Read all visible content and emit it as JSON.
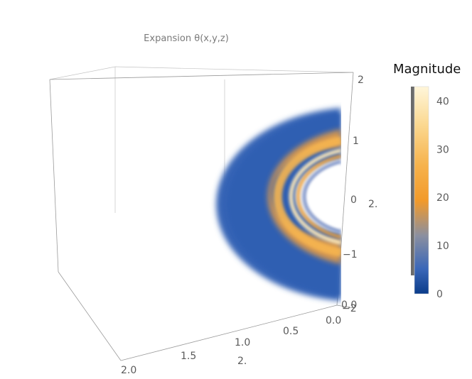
{
  "chart_data": {
    "type": "heatmap",
    "title": "Expansion θ(x,y,z)",
    "legend_title": "Magnitude",
    "color_range": [
      0,
      43
    ],
    "legend_ticks": [
      0,
      10,
      20,
      30,
      40
    ],
    "colors": {
      "low": "#1a3f8f",
      "blue": "#3a67b8",
      "mid": "#8a8a9a",
      "orange": "#f39a2a",
      "high": "#fff3cf"
    },
    "axes": {
      "vertical": {
        "ticks": [
          "−1",
          "0",
          "1",
          "2"
        ]
      },
      "depth": {
        "ticks": [
          "−2",
          "2."
        ]
      },
      "front_right": {
        "ticks": [
          "0.0",
          "0.5",
          "1.0"
        ]
      },
      "front_left": {
        "ticks": [
          "1.5",
          "2.0"
        ]
      },
      "front_mid_label": "2."
    },
    "corner_labels": [
      "0.0",
      "0.0"
    ],
    "shape": "half annulus (semicircular shell) with blue outer region and bright orange/yellow inner rings",
    "grid": false
  }
}
